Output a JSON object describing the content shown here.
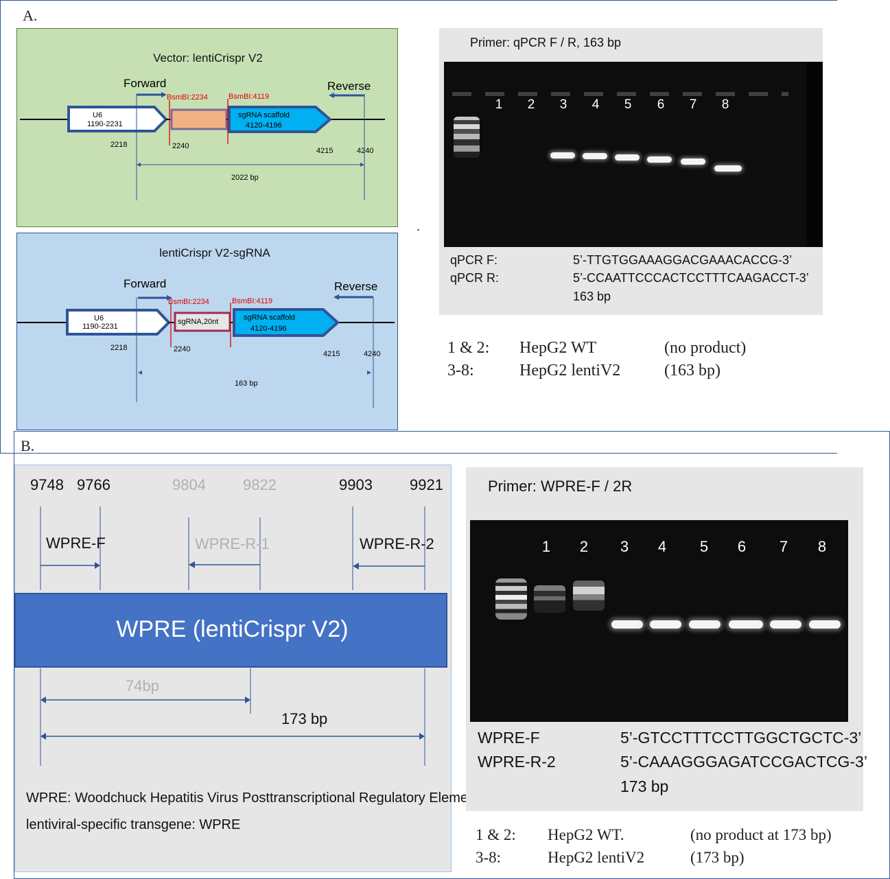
{
  "panelA": {
    "label": "A.",
    "vector": {
      "title": "Vector: lentiCrispr V2",
      "forward": "Forward",
      "reverse": "Reverse",
      "u6_name": "U6",
      "u6_range": "1190-2231",
      "bsmbi_left": "BsmBI:2234",
      "bsmbi_right": "BsmBI:4119",
      "scaffold_name": "sgRNA scaffold",
      "scaffold_range": "4120-4196",
      "pos_2218": "2218",
      "pos_2240": "2240",
      "pos_4215": "4215",
      "pos_4240": "4240",
      "size": "2022 bp"
    },
    "sgrna": {
      "title": "lentiCrispr V2-sgRNA",
      "forward": "Forward",
      "reverse": "Reverse",
      "u6_name": "U6",
      "u6_range": "1190-2231",
      "bsmbi_left": "BsmBI:2234",
      "bsmbi_right": "BsmBI:4119",
      "insert": "sgRNA,20nt",
      "scaffold_name": "sgRNA scaffold",
      "scaffold_range": "4120-4196",
      "pos_2218": "2218",
      "pos_2240": "2240",
      "pos_4215": "4215",
      "pos_4240": "4240",
      "size": "163 bp"
    },
    "gel": {
      "primer_title": "Primer: qPCR F / R, 163 bp",
      "lanes": [
        "1",
        "2",
        "3",
        "4",
        "5",
        "6",
        "7",
        "8"
      ],
      "lane_product": [
        0,
        0,
        1,
        1,
        1,
        1,
        1,
        1
      ],
      "seq_f_name": "qPCR F:",
      "seq_f": "5’-TTGTGGAAAGGACGAAACACCG-3’",
      "seq_r_name": "qPCR R:",
      "seq_r": "5’-CCAATTCCCACTCCTTTCAAGACCT-3’",
      "size": "163 bp"
    },
    "dot": ".",
    "legend": [
      {
        "lanes": "1 & 2:",
        "sample": "HepG2 WT",
        "result": "(no product)"
      },
      {
        "lanes": "3-8:",
        "sample": "HepG2 lentiV2",
        "result": "(163 bp)"
      }
    ]
  },
  "panelB": {
    "label": "B.",
    "map": {
      "pos_9748": "9748",
      "pos_9766": "9766",
      "pos_9804": "9804",
      "pos_9822": "9822",
      "pos_9903": "9903",
      "pos_9921": "9921",
      "wpre_f": "WPRE-F",
      "wpre_r1": "WPRE-R-1",
      "wpre_r2": "WPRE-R-2",
      "bar_label": "WPRE (lentiCrispr V2)",
      "size_74": "74bp",
      "size_173": "173 bp",
      "note1": "WPRE: Woodchuck Hepatitis Virus Posttranscriptional Regulatory Element",
      "note2": "lentiviral-specific transgene: WPRE"
    },
    "gel": {
      "primer_title": "Primer: WPRE-F / 2R",
      "lanes": [
        "1",
        "2",
        "3",
        "4",
        "5",
        "6",
        "7",
        "8"
      ],
      "lane_product": [
        0,
        0,
        1,
        1,
        1,
        1,
        1,
        1
      ],
      "seq_f_name": "WPRE-F",
      "seq_f": "5’-GTCCTTTCCTTGGCTGCTC-3’",
      "seq_r_name": "WPRE-R-2",
      "seq_r": "5’-CAAAGGGAGATCCGACTCG-3’",
      "size": "173 bp"
    },
    "legend": [
      {
        "lanes": "1 & 2:",
        "sample": "HepG2 WT.",
        "result": "(no product at 173 bp)"
      },
      {
        "lanes": "3-8:",
        "sample": "HepG2 lentiV2",
        "result": "(173 bp)"
      }
    ]
  },
  "colors": {
    "vector_bg": "#c6e0b4",
    "sgrna_bg": "#bdd7ee",
    "arrow_outline": "#2f5597",
    "scaffold_fill": "#00b0f0",
    "insert_fill": "#f4b183",
    "bsmbi_red": "#e00000",
    "wpre_bar": "#4472c4",
    "panel_gray": "#e7e6e6"
  }
}
